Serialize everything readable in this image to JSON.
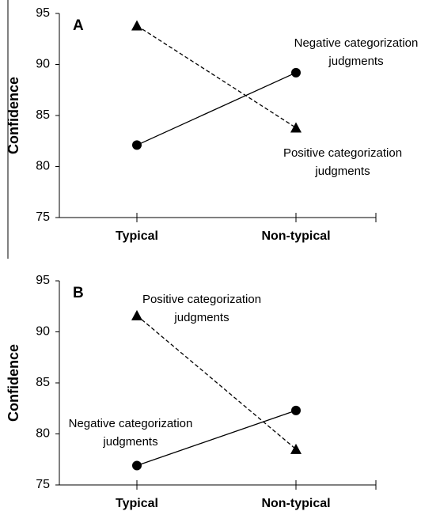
{
  "chart_data": [
    {
      "type": "line",
      "panel_label": "A",
      "y_label": "Confidence",
      "categories": [
        "Typical",
        "Non-typical"
      ],
      "ylim": [
        75,
        95
      ],
      "yticks": [
        75,
        80,
        85,
        90,
        95
      ],
      "series": [
        {
          "name": "Negative categorization judgments",
          "color": "#000000",
          "marker": "circle",
          "line_style": "solid",
          "values": [
            82.1,
            89.2
          ]
        },
        {
          "name": "Positive categorization judgments",
          "color": "#000000",
          "marker": "triangle",
          "line_style": "dashed",
          "values": [
            93.8,
            83.8
          ]
        }
      ]
    },
    {
      "type": "line",
      "panel_label": "B",
      "y_label": "Confidence",
      "categories": [
        "Typical",
        "Non-typical"
      ],
      "ylim": [
        75,
        95
      ],
      "yticks": [
        75,
        80,
        85,
        90,
        95
      ],
      "series": [
        {
          "name": "Negative categorization judgments",
          "color": "#000000",
          "marker": "circle",
          "line_style": "solid",
          "values": [
            76.9,
            82.3
          ]
        },
        {
          "name": "Positive categorization judgments",
          "color": "#000000",
          "marker": "triangle",
          "line_style": "dashed",
          "values": [
            91.6,
            78.5
          ]
        }
      ]
    }
  ]
}
